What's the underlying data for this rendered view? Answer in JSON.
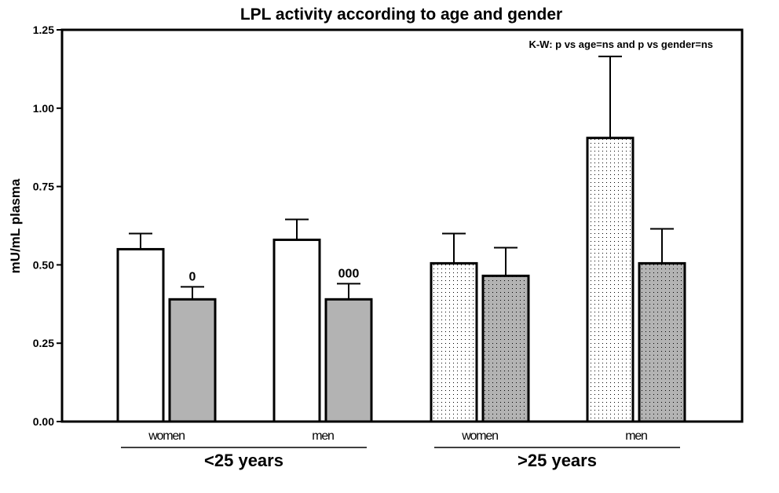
{
  "chart_data": {
    "type": "bar",
    "title": "LPL activity according to age and gender",
    "ylabel": "mU/mL plasma",
    "xlabel": "",
    "ylim": [
      0,
      1.25
    ],
    "yticks": [
      "0.00",
      "0.25",
      "0.50",
      "0.75",
      "1.00",
      "1.25"
    ],
    "annotation": "K-W: p vs age=ns and p vs gender=ns",
    "groups": [
      {
        "label": "<25 years",
        "subgroups": [
          {
            "label": "women",
            "bars": [
              {
                "value": 0.55,
                "error": 0.05,
                "fill": "white",
                "mark": ""
              },
              {
                "value": 0.39,
                "error": 0.04,
                "fill": "gray",
                "mark": "0"
              }
            ]
          },
          {
            "label": "men",
            "bars": [
              {
                "value": 0.58,
                "error": 0.065,
                "fill": "white",
                "mark": ""
              },
              {
                "value": 0.39,
                "error": 0.05,
                "fill": "gray",
                "mark": "000"
              }
            ]
          }
        ]
      },
      {
        "label": ">25 years",
        "subgroups": [
          {
            "label": "women",
            "bars": [
              {
                "value": 0.505,
                "error": 0.095,
                "fill": "dotted-white",
                "mark": ""
              },
              {
                "value": 0.465,
                "error": 0.09,
                "fill": "dotted-gray",
                "mark": ""
              }
            ]
          },
          {
            "label": "men",
            "bars": [
              {
                "value": 0.905,
                "error": 0.26,
                "fill": "dotted-white",
                "mark": ""
              },
              {
                "value": 0.505,
                "error": 0.11,
                "fill": "dotted-gray",
                "mark": ""
              }
            ]
          }
        ]
      }
    ],
    "grid": false,
    "colors": {
      "white": "#ffffff",
      "gray": "#b3b3b3",
      "outline": "#000000"
    }
  }
}
